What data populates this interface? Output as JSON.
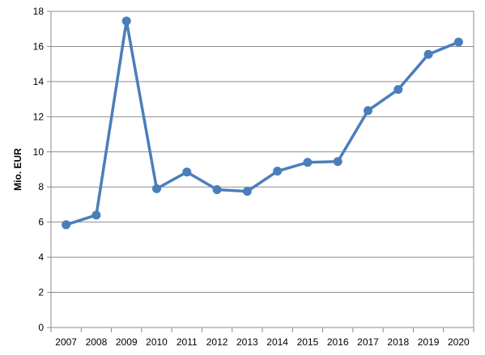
{
  "chart_data": {
    "type": "line",
    "title": "",
    "xlabel": "",
    "ylabel": "Mio. EUR",
    "categories": [
      "2007",
      "2008",
      "2009",
      "2010",
      "2011",
      "2012",
      "2013",
      "2014",
      "2015",
      "2016",
      "2017",
      "2018",
      "2019",
      "2020"
    ],
    "series": [
      {
        "values": [
          5.85,
          6.4,
          17.45,
          7.9,
          8.85,
          7.85,
          7.75,
          8.9,
          9.4,
          9.45,
          12.35,
          13.55,
          15.55,
          16.25
        ]
      }
    ],
    "ylim": [
      0,
      18
    ],
    "yticks": [
      0,
      2,
      4,
      6,
      8,
      10,
      12,
      14,
      16,
      18
    ],
    "grid": true,
    "legend": "none",
    "line_color": "#4a7ebb",
    "marker": "circle"
  }
}
